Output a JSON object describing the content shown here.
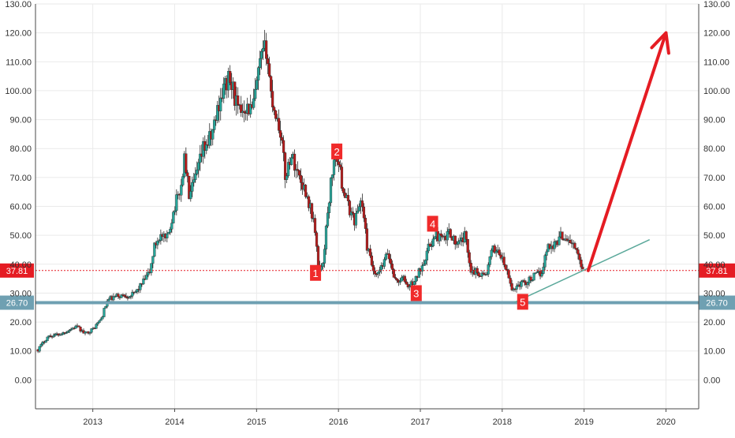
{
  "chart_data": {
    "type": "candlestick",
    "x_ticks": [
      "2013",
      "2014",
      "2015",
      "2016",
      "2017",
      "2018",
      "2019",
      "2020"
    ],
    "y_ticks": [
      "0.00",
      "10.00",
      "20.00",
      "30.00",
      "40.00",
      "50.00",
      "60.00",
      "70.00",
      "80.00",
      "90.00",
      "100.00",
      "110.00",
      "120.00",
      "130.00"
    ],
    "ylim": [
      -10,
      130
    ],
    "xlim": [
      2012.3,
      2020.4
    ],
    "grid": true,
    "price_path": [
      [
        2012.33,
        10.5
      ],
      [
        2012.45,
        15
      ],
      [
        2012.62,
        16
      ],
      [
        2012.8,
        18.5
      ],
      [
        2012.9,
        16
      ],
      [
        2013.0,
        17.5
      ],
      [
        2013.1,
        21
      ],
      [
        2013.18,
        27.5
      ],
      [
        2013.3,
        29
      ],
      [
        2013.5,
        29.5
      ],
      [
        2013.62,
        34
      ],
      [
        2013.7,
        37.5
      ],
      [
        2013.75,
        46
      ],
      [
        2013.82,
        50
      ],
      [
        2013.9,
        48
      ],
      [
        2014.0,
        60
      ],
      [
        2014.08,
        67
      ],
      [
        2014.12,
        77
      ],
      [
        2014.18,
        63
      ],
      [
        2014.28,
        72
      ],
      [
        2014.35,
        80
      ],
      [
        2014.45,
        84
      ],
      [
        2014.55,
        97
      ],
      [
        2014.65,
        104
      ],
      [
        2014.72,
        100
      ],
      [
        2014.78,
        92
      ],
      [
        2014.85,
        95
      ],
      [
        2014.95,
        93
      ],
      [
        2015.05,
        110
      ],
      [
        2015.12,
        115
      ],
      [
        2015.18,
        98
      ],
      [
        2015.3,
        85
      ],
      [
        2015.35,
        70
      ],
      [
        2015.42,
        78
      ],
      [
        2015.5,
        72
      ],
      [
        2015.6,
        65
      ],
      [
        2015.7,
        55
      ],
      [
        2015.75,
        40
      ],
      [
        2015.8,
        38
      ],
      [
        2015.85,
        52
      ],
      [
        2015.92,
        72
      ],
      [
        2015.98,
        78
      ],
      [
        2016.05,
        67
      ],
      [
        2016.12,
        60
      ],
      [
        2016.2,
        55
      ],
      [
        2016.28,
        63
      ],
      [
        2016.35,
        46
      ],
      [
        2016.45,
        35
      ],
      [
        2016.55,
        40
      ],
      [
        2016.6,
        44
      ],
      [
        2016.7,
        34
      ],
      [
        2016.8,
        35
      ],
      [
        2016.85,
        32
      ],
      [
        2016.95,
        35
      ],
      [
        2017.05,
        42
      ],
      [
        2017.12,
        47
      ],
      [
        2017.2,
        50
      ],
      [
        2017.3,
        48
      ],
      [
        2017.35,
        52
      ],
      [
        2017.45,
        46
      ],
      [
        2017.55,
        50
      ],
      [
        2017.62,
        38
      ],
      [
        2017.72,
        37
      ],
      [
        2017.8,
        36
      ],
      [
        2017.88,
        45
      ],
      [
        2017.95,
        45
      ],
      [
        2018.05,
        38
      ],
      [
        2018.12,
        31
      ],
      [
        2018.2,
        33
      ],
      [
        2018.3,
        34
      ],
      [
        2018.4,
        36
      ],
      [
        2018.48,
        37
      ],
      [
        2018.55,
        46
      ],
      [
        2018.65,
        47
      ],
      [
        2018.72,
        50
      ],
      [
        2018.8,
        49
      ],
      [
        2018.88,
        46
      ],
      [
        2018.95,
        41
      ],
      [
        2019.0,
        38
      ]
    ],
    "markers": [
      {
        "label": "1",
        "x": 2015.72,
        "y": 37
      },
      {
        "label": "2",
        "x": 2015.98,
        "y": 79
      },
      {
        "label": "3",
        "x": 2016.95,
        "y": 30
      },
      {
        "label": "4",
        "x": 2017.15,
        "y": 54
      },
      {
        "label": "5",
        "x": 2018.25,
        "y": 27
      }
    ],
    "price_lines": [
      {
        "value": 37.81,
        "label": "37.81",
        "style": "dotted",
        "color": "#e51c23"
      },
      {
        "value": 26.7,
        "label": "26.70",
        "style": "solid",
        "color": "#6fa0b2"
      }
    ],
    "trendline": {
      "from": [
        2018.15,
        26.8
      ],
      "to": [
        2019.8,
        48.5
      ],
      "color": "#5aa89a"
    },
    "projection_arrow": {
      "from": [
        2019.05,
        37.8
      ],
      "to": [
        2020.0,
        120
      ],
      "color": "#e51c23"
    }
  },
  "colors": {
    "up": "#26a69a",
    "down": "#b71c1c",
    "grid": "#eaeaea",
    "axis": "#4a4a4a",
    "text": "#333333",
    "marker_bg": "#f02a2a"
  }
}
